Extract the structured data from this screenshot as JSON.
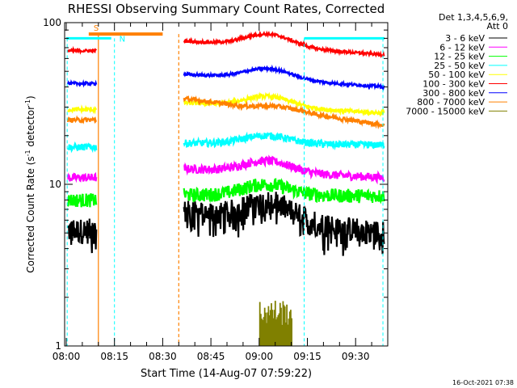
{
  "chart_data": {
    "type": "line",
    "title": "RHESSI Observing Summary Count Rates, Corrected",
    "xlabel": "Start Time (14-Aug-07 07:59:22)",
    "ylabel_main": "Corrected Count Rate (s",
    "ylabel_sup1": "-1",
    "ylabel_mid": " detector",
    "ylabel_sup2": "-1",
    "ylabel_end": ")",
    "yscale": "log",
    "ylim": [
      1,
      100
    ],
    "xlim_minutes_after_0800": [
      -0.5,
      100
    ],
    "xticks": [
      {
        "label": "08:00",
        "minute": 0
      },
      {
        "label": "08:15",
        "minute": 15
      },
      {
        "label": "08:30",
        "minute": 30
      },
      {
        "label": "08:45",
        "minute": 45
      },
      {
        "label": "09:00",
        "minute": 60
      },
      {
        "label": "09:15",
        "minute": 75
      },
      {
        "label": "09:30",
        "minute": 90
      }
    ],
    "yticks": [
      {
        "label": "1",
        "value": 1
      },
      {
        "label": "10",
        "value": 10
      },
      {
        "label": "100",
        "value": 100
      }
    ],
    "legend_header": [
      "Det 1,3,4,5,6,9,",
      "Att 0"
    ],
    "legend_position": "top-right, outside plot",
    "timestamp": "16-Oct-2021 07:38",
    "markers": {
      "saa": {
        "label": "S",
        "start_min": 7,
        "end_min": 30,
        "color": "#ff8000"
      },
      "night_start": {
        "label": "N",
        "start_min": 0,
        "end_min": 10,
        "color": "#00ffff"
      },
      "night_end": {
        "label": "",
        "start_min": 74,
        "end_min": 100,
        "color": "#00ffff"
      }
    },
    "gap": {
      "start_min": 10,
      "end_min": 36
    },
    "series": [
      {
        "name": "3 - 6 keV",
        "color": "#000000",
        "pre": 5.2,
        "post": 6.8,
        "peak": 7.8,
        "late": 5.0,
        "noise": 0.18
      },
      {
        "name": "6 - 12 keV",
        "color": "#ff00ff",
        "pre": 11.0,
        "post": 12.5,
        "peak": 14.0,
        "late": 11.0,
        "noise": 0.06
      },
      {
        "name": "12 - 25 keV",
        "color": "#00ff00",
        "pre": 8.0,
        "post": 8.6,
        "peak": 10.0,
        "late": 8.5,
        "noise": 0.1
      },
      {
        "name": "25 - 50 keV",
        "color": "#00ffff",
        "pre": 17.0,
        "post": 18.0,
        "peak": 20.0,
        "late": 17.5,
        "noise": 0.05
      },
      {
        "name": "50 - 100 keV",
        "color": "#ffff00",
        "pre": 29.0,
        "post": 32.0,
        "peak": 35.0,
        "late": 27.5,
        "noise": 0.03
      },
      {
        "name": "100 - 300 keV",
        "color": "#ff0000",
        "pre": 67.0,
        "post": 77.0,
        "peak": 85.0,
        "late": 63.0,
        "noise": 0.02
      },
      {
        "name": "300 - 800 keV",
        "color": "#0000ff",
        "pre": 42.0,
        "post": 48.0,
        "peak": 52.0,
        "late": 40.0,
        "noise": 0.02
      },
      {
        "name": "800 - 7000 keV",
        "color": "#ff8000",
        "pre": 25.0,
        "post": 34.0,
        "peak": 30.5,
        "late": 23.0,
        "noise": 0.03
      },
      {
        "name": "7000 - 15000 keV",
        "color": "#808000",
        "pre": null,
        "post": null,
        "peak": null,
        "late": null,
        "noise": 0,
        "bars": {
          "start_min": 60,
          "end_min": 70,
          "top": 1.95
        }
      }
    ]
  }
}
